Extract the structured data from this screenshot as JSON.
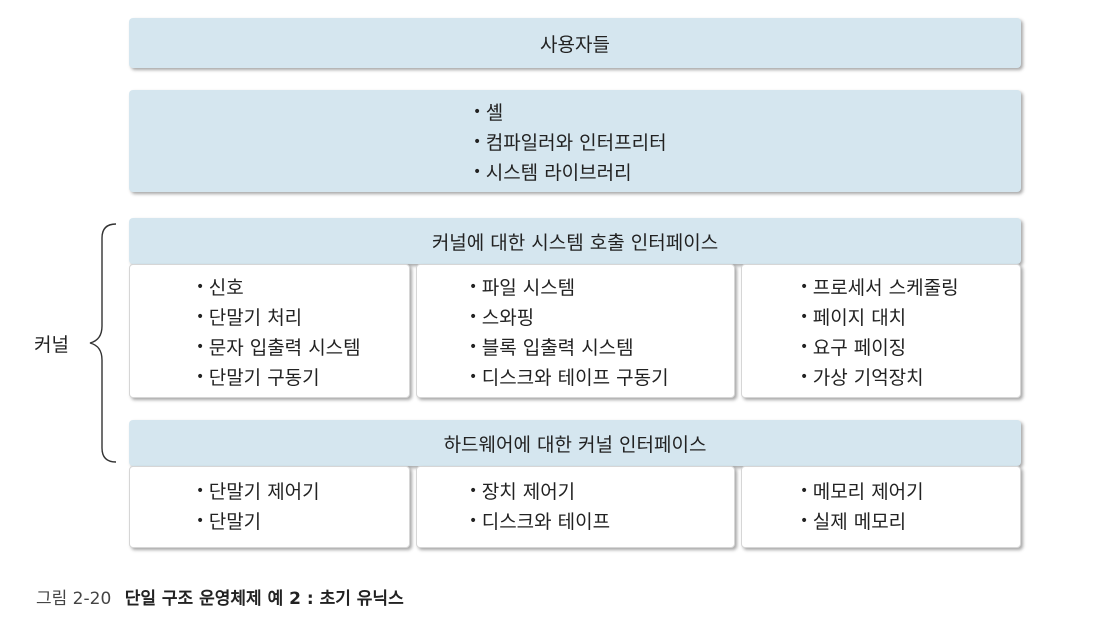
{
  "users_layer": {
    "label": "사용자들"
  },
  "system_programs": {
    "items": [
      "셸",
      "컴파일러와 인터프리터",
      "시스템 라이브러리"
    ]
  },
  "kernel_label": "커널",
  "syscall_interface": {
    "label": "커널에 대한 시스템 호출 인터페이스"
  },
  "kernel_columns": [
    {
      "items": [
        "신호",
        "단말기 처리",
        "문자 입출력 시스템",
        "단말기 구동기"
      ]
    },
    {
      "items": [
        "파일 시스템",
        "스와핑",
        "블록 입출력 시스템",
        "디스크와 테이프 구동기"
      ]
    },
    {
      "items": [
        "프로세서 스케줄링",
        "페이지 대치",
        "요구 페이징",
        "가상 기억장치"
      ]
    }
  ],
  "hw_interface": {
    "label": "하드웨어에 대한 커널 인터페이스"
  },
  "hardware_columns": [
    {
      "items": [
        "단말기 제어기",
        "단말기"
      ]
    },
    {
      "items": [
        "장치 제어기",
        "디스크와 테이프"
      ]
    },
    {
      "items": [
        "메모리 제어기",
        "실제 메모리"
      ]
    }
  ],
  "caption": {
    "number": "그림 2-20",
    "title": "단일 구조 운영체제 예 2 : 초기 유닉스"
  }
}
